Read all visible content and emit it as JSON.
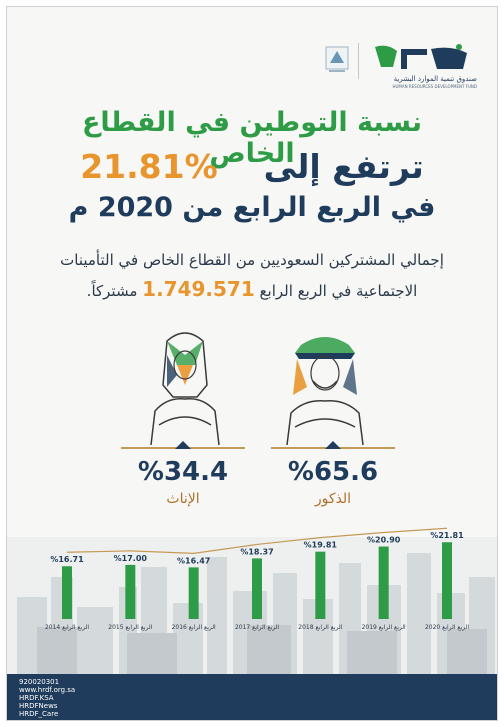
{
  "header": {
    "logo_arabic": "صندوق تنمية الموارد البشرية",
    "logo_english": "HUMAN RESOURCES DEVELOPMENT FUND"
  },
  "headline": {
    "line1": "نسبة التوطين في القطاع الخاص",
    "line2_prefix": "ترتفع إلى",
    "line2_value": "%21.81",
    "line3": "في الربع الرابع من 2020 م"
  },
  "description": {
    "line1": "إجمالي المشتركين السعوديين من القطاع الخاص في التأمينات",
    "line2_prefix": "الاجتماعية في الربع الرابع",
    "line2_value": "1.749.571",
    "line2_suffix": "مشتركاً."
  },
  "stats": {
    "female": {
      "value": "%34.4",
      "label": "الإناث"
    },
    "male": {
      "value": "%65.6",
      "label": "الذكور"
    }
  },
  "colors": {
    "green": "#2e9c46",
    "navy": "#1f3c5c",
    "orange": "#e8952e",
    "gold": "#c59a55"
  },
  "chart_data": {
    "type": "bar",
    "categories": [
      "الربع الرابع 2014",
      "الربع الرابع 2015",
      "الربع الرابع 2016",
      "الربع الرابع 2017",
      "الربع الرابع 2018",
      "الربع الرابع 2019",
      "الربع الرابع 2020"
    ],
    "values": [
      16.71,
      17.0,
      16.47,
      18.37,
      19.81,
      20.9,
      21.81
    ],
    "data_labels": [
      "%16.71",
      "%17.00",
      "%16.47",
      "%18.37",
      "%19.81",
      "%20.90",
      "%21.81"
    ],
    "title": "",
    "xlabel": "",
    "ylabel": "",
    "ylim": [
      0,
      25
    ],
    "grid": false,
    "legend": "none"
  },
  "footer": {
    "items": [
      "920020301",
      "www.hrdf.org.sa",
      "HRDF.KSA",
      "HRDFNews",
      "HRDF_Care"
    ]
  }
}
